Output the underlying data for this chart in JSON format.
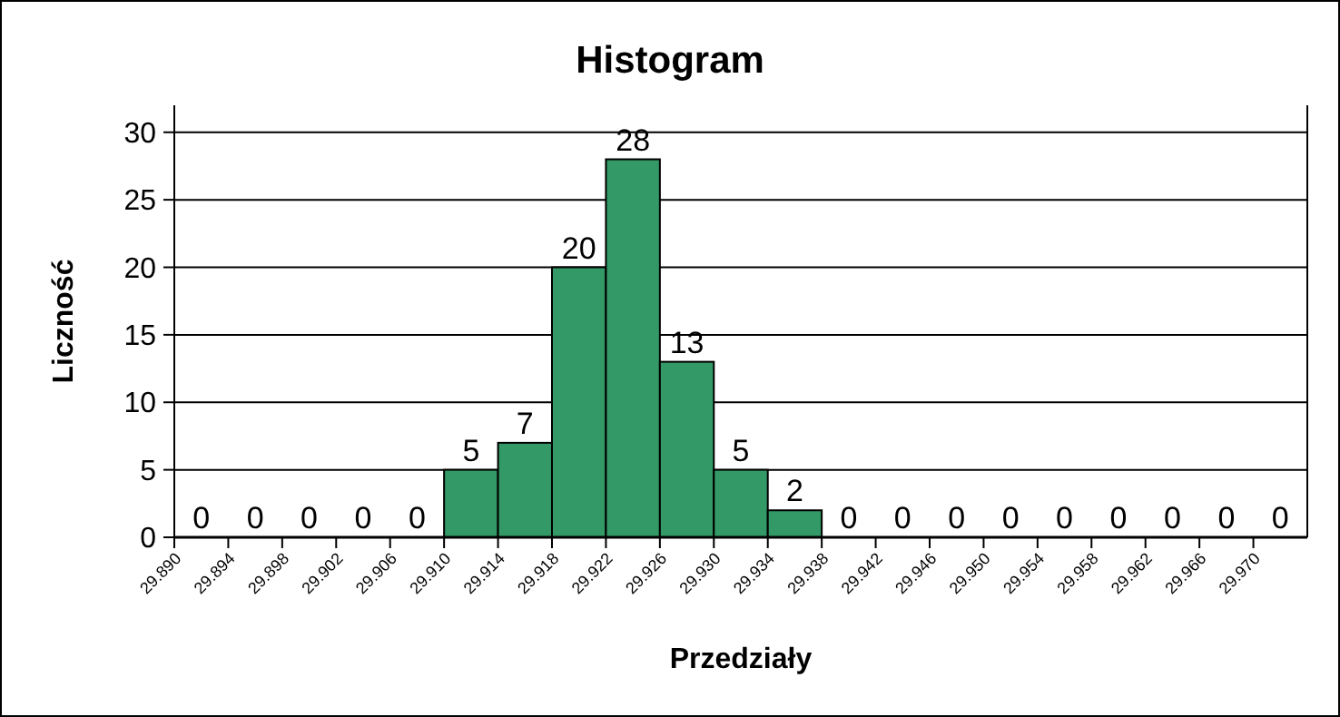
{
  "chart_data": {
    "type": "histogram",
    "title": "Histogram",
    "xlabel": "Przedziały",
    "ylabel": "Liczność",
    "bins": [
      29.89,
      29.894,
      29.898,
      29.902,
      29.906,
      29.91,
      29.914,
      29.918,
      29.922,
      29.926,
      29.93,
      29.934,
      29.938,
      29.942,
      29.946,
      29.95,
      29.954,
      29.958,
      29.962,
      29.966,
      29.97,
      29.974
    ],
    "values": [
      0,
      0,
      0,
      0,
      0,
      5,
      7,
      20,
      28,
      13,
      5,
      2,
      0,
      0,
      0,
      0,
      0,
      0,
      0,
      0,
      0
    ],
    "color": "#339966",
    "xlim": [
      29.89,
      29.974
    ],
    "xticks": [
      {
        "value": 29.89,
        "label": "29.890"
      },
      {
        "value": 29.894,
        "label": "29.894"
      },
      {
        "value": 29.898,
        "label": "29.898"
      },
      {
        "value": 29.902,
        "label": "29.902"
      },
      {
        "value": 29.906,
        "label": "29.906"
      },
      {
        "value": 29.91,
        "label": "29.910"
      },
      {
        "value": 29.914,
        "label": "29.914"
      },
      {
        "value": 29.918,
        "label": "29.918"
      },
      {
        "value": 29.922,
        "label": "29.922"
      },
      {
        "value": 29.926,
        "label": "29.926"
      },
      {
        "value": 29.93,
        "label": "29.930"
      },
      {
        "value": 29.934,
        "label": "29.934"
      },
      {
        "value": 29.938,
        "label": "29.938"
      },
      {
        "value": 29.942,
        "label": "29.942"
      },
      {
        "value": 29.946,
        "label": "29.946"
      },
      {
        "value": 29.95,
        "label": "29.950"
      },
      {
        "value": 29.954,
        "label": "29.954"
      },
      {
        "value": 29.958,
        "label": "29.958"
      },
      {
        "value": 29.962,
        "label": "29.962"
      },
      {
        "value": 29.966,
        "label": "29.966"
      },
      {
        "value": 29.97,
        "label": "29.970"
      }
    ],
    "ylim": [
      0,
      32
    ],
    "yticks": [
      0,
      5,
      10,
      15,
      20,
      25,
      30
    ],
    "grid": "y",
    "data_labels": true
  }
}
